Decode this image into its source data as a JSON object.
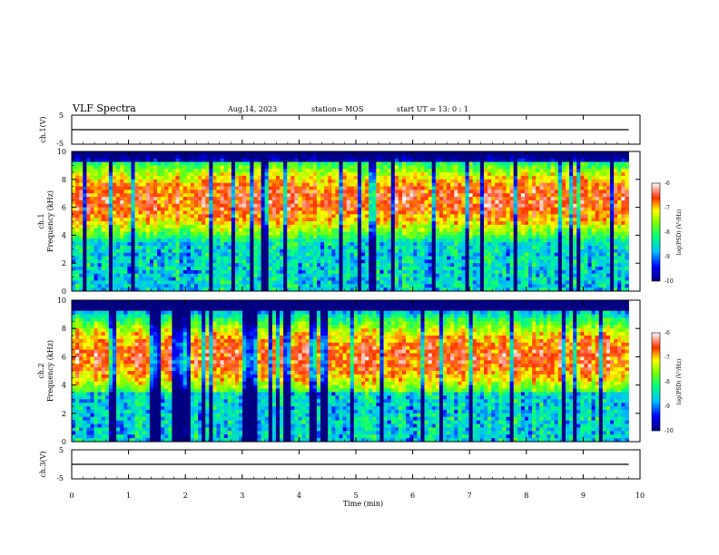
{
  "header": {
    "title": "VLF Spectra",
    "date": "Aug.14, 2023",
    "station": "station= MOS",
    "start": "start UT =   13: 0  : 1"
  },
  "chart_data": [
    {
      "type": "line",
      "name": "ch1-waveform",
      "ylabel": "ch.1(V)",
      "ylim": [
        -5,
        5
      ],
      "yticks": [
        "5",
        "-5"
      ],
      "xlim": [
        0,
        10
      ],
      "x": [
        0,
        9.8
      ],
      "y": [
        0,
        0
      ]
    },
    {
      "type": "heatmap",
      "name": "ch1-spectrogram",
      "ylabel": "Frequency (kHz)",
      "channel": "ch.1",
      "ylim": [
        0,
        10
      ],
      "yticks": [
        "0",
        "2",
        "4",
        "6",
        "8",
        "10"
      ],
      "xlim": [
        0,
        9.8
      ],
      "band_peak_khz": 6.5,
      "colorbar": {
        "label": "log(PSD) (V²/Hz)",
        "ticks": [
          "-6",
          "-7",
          "-8",
          "-9",
          "-10"
        ],
        "range": [
          -10,
          -6
        ]
      }
    },
    {
      "type": "heatmap",
      "name": "ch2-spectrogram",
      "ylabel": "Frequency (kHz)",
      "channel": "ch.2",
      "ylim": [
        0,
        10
      ],
      "yticks": [
        "0",
        "2",
        "4",
        "6",
        "8",
        "10"
      ],
      "xlim": [
        0,
        9.8
      ],
      "band_peak_khz": 6.0,
      "colorbar": {
        "label": "log(PSD) (V²/Hz)",
        "ticks": [
          "-6",
          "-7",
          "-8",
          "-9",
          "-10"
        ],
        "range": [
          -10,
          -6
        ]
      }
    },
    {
      "type": "line",
      "name": "ch3-waveform",
      "ylabel": "ch.3(V)",
      "ylim": [
        -5,
        5
      ],
      "yticks": [
        "5",
        "-5"
      ],
      "xlim": [
        0,
        10
      ],
      "x": [
        0,
        9.8
      ],
      "y": [
        0,
        0
      ]
    }
  ],
  "xaxis": {
    "label": "Time (min)",
    "ticks": [
      "0",
      "1",
      "2",
      "3",
      "4",
      "5",
      "6",
      "7",
      "8",
      "9",
      "10"
    ],
    "range": [
      0,
      10
    ]
  }
}
